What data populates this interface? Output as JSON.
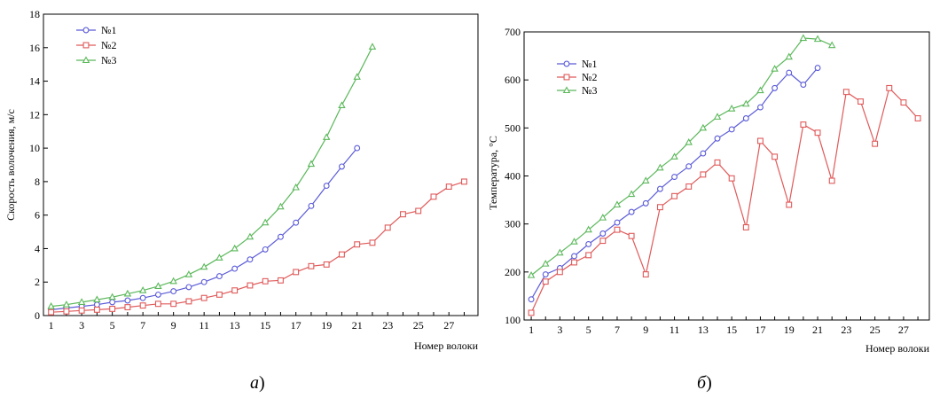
{
  "colors": {
    "s1": "#5b5bd8",
    "s2": "#e05a5a",
    "s3": "#5bb85b"
  },
  "chart_data": [
    {
      "type": "line",
      "caption_letter": "а",
      "caption_paren": ")",
      "xlabel": "Номер волоки",
      "ylabel": "Скорость волочения, м/с",
      "xlim": [
        0.5,
        28.9
      ],
      "ylim": [
        0,
        18
      ],
      "xticks": [
        1,
        3,
        5,
        7,
        9,
        11,
        13,
        15,
        17,
        19,
        21,
        23,
        25,
        27
      ],
      "yticks": [
        0,
        2,
        4,
        6,
        8,
        10,
        12,
        14,
        16,
        18
      ],
      "grid": false,
      "legend": "top-left",
      "series": [
        {
          "name": "№1",
          "marker": "circle",
          "color": "#5b5bd8",
          "x": [
            1,
            2,
            3,
            4,
            5,
            6,
            7,
            8,
            9,
            10,
            11,
            12,
            13,
            14,
            15,
            16,
            17,
            18,
            19,
            20,
            21
          ],
          "y": [
            0.35,
            0.45,
            0.55,
            0.65,
            0.8,
            0.9,
            1.05,
            1.25,
            1.45,
            1.7,
            2.0,
            2.35,
            2.8,
            3.35,
            3.95,
            4.7,
            5.55,
            6.55,
            7.75,
            8.9,
            10.0
          ]
        },
        {
          "name": "№2",
          "marker": "square",
          "color": "#e05a5a",
          "x": [
            1,
            2,
            3,
            4,
            5,
            6,
            7,
            8,
            9,
            10,
            11,
            12,
            13,
            14,
            15,
            16,
            17,
            18,
            19,
            20,
            21,
            22,
            23,
            24,
            25,
            26,
            27,
            28
          ],
          "y": [
            0.2,
            0.25,
            0.3,
            0.35,
            0.4,
            0.5,
            0.6,
            0.7,
            0.7,
            0.85,
            1.05,
            1.25,
            1.5,
            1.8,
            2.05,
            2.1,
            2.6,
            2.95,
            3.05,
            3.65,
            4.25,
            4.35,
            5.25,
            6.05,
            6.25,
            7.1,
            7.7,
            8.0
          ]
        },
        {
          "name": "№3",
          "marker": "triangle",
          "color": "#5bb85b",
          "x": [
            1,
            2,
            3,
            4,
            5,
            6,
            7,
            8,
            9,
            10,
            11,
            12,
            13,
            14,
            15,
            16,
            17,
            18,
            19,
            20,
            21,
            22
          ],
          "y": [
            0.55,
            0.65,
            0.8,
            0.95,
            1.1,
            1.3,
            1.5,
            1.75,
            2.05,
            2.45,
            2.9,
            3.45,
            4.0,
            4.7,
            5.55,
            6.5,
            7.65,
            9.05,
            10.65,
            12.55,
            14.25,
            16.05
          ]
        }
      ]
    },
    {
      "type": "line",
      "caption_letter": "б",
      "caption_paren": ")",
      "xlabel": "Номер волоки",
      "ylabel": "Температура, °С",
      "xlim": [
        0.5,
        28.8
      ],
      "ylim": [
        100,
        700
      ],
      "xticks": [
        1,
        3,
        5,
        7,
        9,
        11,
        13,
        15,
        17,
        19,
        21,
        23,
        25,
        27
      ],
      "yticks": [
        100,
        200,
        300,
        400,
        500,
        600,
        700
      ],
      "grid": false,
      "legend": "top-left",
      "series": [
        {
          "name": "№1",
          "marker": "circle",
          "color": "#5b5bd8",
          "x": [
            1,
            2,
            3,
            4,
            5,
            6,
            7,
            8,
            9,
            10,
            11,
            12,
            13,
            14,
            15,
            16,
            17,
            18,
            19,
            20,
            21
          ],
          "y": [
            143,
            195,
            208,
            233,
            258,
            280,
            303,
            325,
            343,
            373,
            398,
            420,
            447,
            478,
            497,
            520,
            543,
            583,
            615,
            590,
            625
          ]
        },
        {
          "name": "№2",
          "marker": "square",
          "color": "#e05a5a",
          "x": [
            1,
            2,
            3,
            4,
            5,
            6,
            7,
            8,
            9,
            10,
            11,
            12,
            13,
            14,
            15,
            16,
            17,
            18,
            19,
            20,
            21,
            22,
            23,
            24,
            25,
            26,
            27,
            28
          ],
          "y": [
            115,
            180,
            200,
            220,
            235,
            265,
            288,
            275,
            195,
            335,
            358,
            378,
            403,
            428,
            395,
            293,
            473,
            440,
            340,
            507,
            490,
            390,
            575,
            555,
            467,
            583,
            553,
            520
          ]
        },
        {
          "name": "№3",
          "marker": "triangle",
          "color": "#5bb85b",
          "x": [
            1,
            2,
            3,
            4,
            5,
            6,
            7,
            8,
            9,
            10,
            11,
            12,
            13,
            14,
            15,
            16,
            17,
            18,
            19,
            20,
            21,
            22
          ],
          "y": [
            193,
            217,
            240,
            263,
            288,
            313,
            340,
            362,
            390,
            417,
            440,
            470,
            500,
            523,
            540,
            550,
            578,
            623,
            648,
            687,
            685,
            672
          ]
        }
      ]
    }
  ]
}
